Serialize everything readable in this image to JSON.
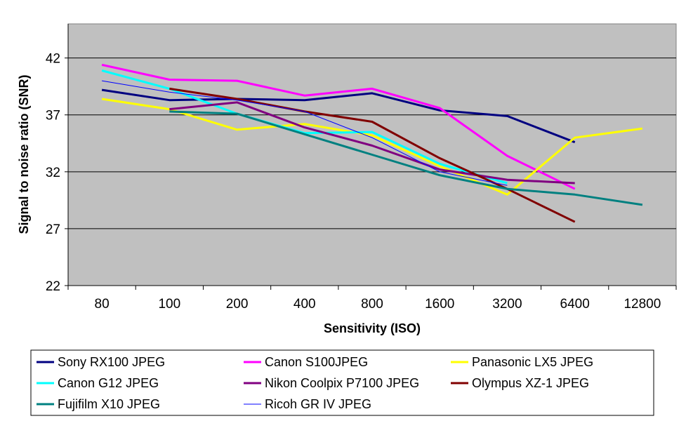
{
  "chart_data": {
    "type": "line",
    "title": "",
    "xlabel": "Sensitivity (ISO)",
    "ylabel": "Signal to noise ratio (SNR)",
    "categories": [
      "80",
      "100",
      "200",
      "400",
      "800",
      "1600",
      "3200",
      "6400",
      "12800"
    ],
    "ylim": [
      22,
      45
    ],
    "yticks": [
      22,
      27,
      32,
      37,
      42
    ],
    "grid": true,
    "legend_position": "bottom",
    "series": [
      {
        "name": "Sony RX100 JPEG",
        "color": "#000080",
        "width": 3,
        "values": [
          39.2,
          38.3,
          38.4,
          38.3,
          38.9,
          37.4,
          36.9,
          34.6,
          null
        ]
      },
      {
        "name": "Canon S100JPEG",
        "color": "#ff00ff",
        "width": 3,
        "values": [
          41.4,
          40.1,
          40.0,
          38.7,
          39.3,
          37.6,
          33.4,
          30.5,
          null
        ]
      },
      {
        "name": "Panasonic LX5 JPEG",
        "color": "#ffff00",
        "width": 3,
        "values": [
          38.4,
          37.5,
          35.7,
          36.2,
          35.2,
          32.5,
          30.0,
          35.0,
          35.8
        ]
      },
      {
        "name": "Canon G12 JPEG",
        "color": "#00ffff",
        "width": 3,
        "values": [
          40.9,
          39.3,
          37.1,
          35.4,
          35.5,
          32.7,
          31.0,
          null,
          null
        ]
      },
      {
        "name": "Nikon Coolpix P7100 JPEG",
        "color": "#800080",
        "width": 3,
        "values": [
          null,
          37.5,
          38.1,
          35.9,
          34.3,
          32.2,
          31.3,
          31.0,
          null
        ]
      },
      {
        "name": "Olympus XZ-1 JPEG",
        "color": "#800000",
        "width": 3,
        "values": [
          null,
          39.3,
          38.4,
          37.3,
          36.4,
          33.2,
          30.5,
          27.6,
          null
        ]
      },
      {
        "name": "Fujifilm X10 JPEG",
        "color": "#008080",
        "width": 3,
        "values": [
          null,
          37.3,
          37.1,
          35.3,
          33.5,
          31.7,
          30.5,
          30.0,
          29.1
        ]
      },
      {
        "name": "Ricoh GR IV JPEG",
        "color": "#0000ff",
        "width": 1,
        "values": [
          40.0,
          39.0,
          38.3,
          37.3,
          35.0,
          32.0,
          30.8,
          null,
          null
        ]
      }
    ]
  }
}
